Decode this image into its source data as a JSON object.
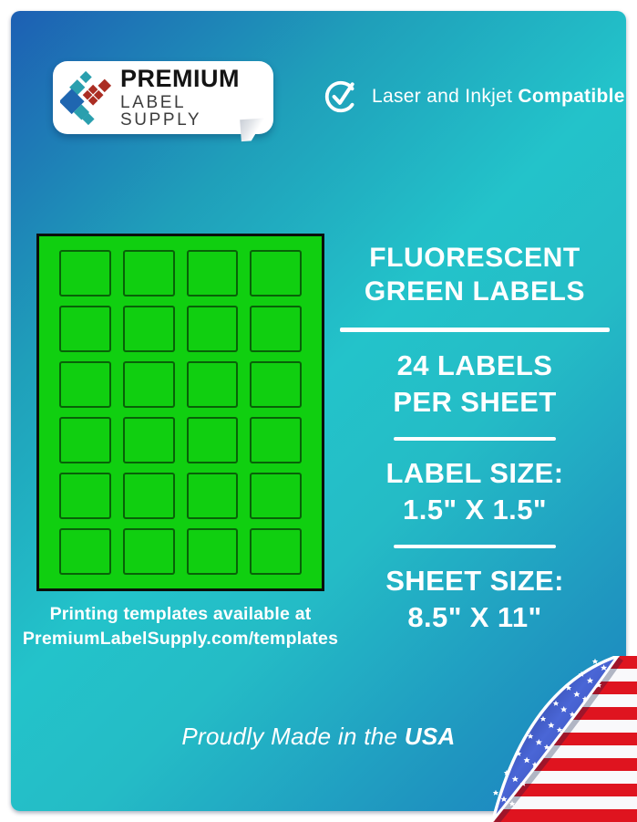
{
  "brand": {
    "line1": "PREMIUM",
    "line2": "LABEL SUPPLY"
  },
  "compatibility": {
    "regular": "Laser and Inkjet ",
    "bold": "Compatible",
    "icon": "check-circle"
  },
  "headline": {
    "line1": "FLUORESCENT",
    "line2": "GREEN LABELS"
  },
  "specs": [
    {
      "line1": "24 LABELS",
      "line2": "PER SHEET"
    },
    {
      "line1": "LABEL SIZE:",
      "line2": "1.5\" X 1.5\""
    },
    {
      "line1": "SHEET SIZE:",
      "line2": "8.5\" X 11\""
    }
  ],
  "sheet": {
    "rows": 6,
    "cols": 4,
    "labels_per_sheet": 24
  },
  "templates_note": {
    "line1": "Printing templates available at",
    "line2": "PremiumLabelSupply.com/templates"
  },
  "footer": {
    "regular": "Proudly Made in the ",
    "bold": "USA"
  },
  "colors": {
    "bg-blue": "#1d5fb3",
    "bg-teal": "#23c3ca",
    "bg-blue2": "#1b7ec2",
    "label-green": "#10cf10",
    "logo-blue": "#1f66b0",
    "logo-teal": "#2a9fae",
    "logo-red": "#ab2d23",
    "flag-red": "#df141f",
    "flag-white": "#f9f9fb",
    "flag-navy": "#1c2f8e"
  }
}
